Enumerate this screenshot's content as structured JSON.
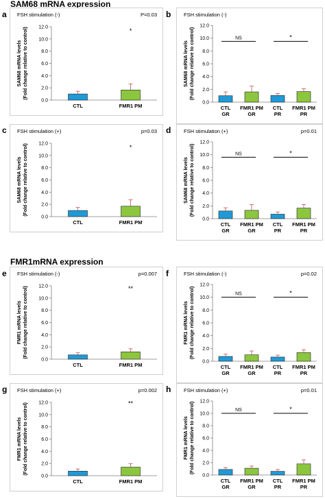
{
  "sections": [
    {
      "title": "SAM68 mRNA expression"
    },
    {
      "title": "FMR1mRNA expression"
    }
  ],
  "colors": {
    "ctl": "#1f9ad6",
    "fmr1pm": "#8cc63f",
    "error": "#c0504d",
    "axis": "#7f7f7f",
    "stroke": "#222222"
  },
  "chart_data": [
    {
      "panel": "a",
      "type": "bar",
      "header": "FSH stimulation (-)",
      "pvalue": "P=0.03",
      "ylabel": [
        "SAM68 mRNA levels",
        "(Fold change relative to control)"
      ],
      "ylim": [
        0,
        12
      ],
      "yticks": [
        "0.0",
        "2.0",
        "4.0",
        "6.0",
        "8.0",
        "10.0",
        "12.0"
      ],
      "categories": [
        [
          "CTL"
        ],
        [
          "FMR1 PM"
        ]
      ],
      "values": [
        1.0,
        1.65
      ],
      "errors": [
        0.45,
        1.0
      ],
      "colors": [
        "ctl",
        "fmr1pm"
      ],
      "marks": [
        {
          "text": "*",
          "index": 1,
          "y": 11.0
        }
      ],
      "brackets": []
    },
    {
      "panel": "b",
      "type": "bar",
      "header": "FSH stimulation (-)",
      "pvalue": "",
      "ylabel": [
        "SAM68 mRNA levels",
        "(Fold change relative to control)"
      ],
      "ylim": [
        0,
        12
      ],
      "yticks": [
        "0.0",
        "2.0",
        "4.0",
        "6.0",
        "8.0",
        "10.0",
        "12.0"
      ],
      "categories": [
        [
          "CTL",
          "GR"
        ],
        [
          "FMR1 PM",
          "GR"
        ],
        [
          "CTL",
          "PR"
        ],
        [
          "FMR1 PM",
          "PR"
        ]
      ],
      "values": [
        1.0,
        1.6,
        1.05,
        1.65
      ],
      "errors": [
        0.6,
        0.9,
        0.3,
        0.45
      ],
      "colors": [
        "ctl",
        "fmr1pm",
        "ctl",
        "fmr1pm"
      ],
      "marks": [],
      "brackets": [
        {
          "label": "NS",
          "from": 0,
          "to": 1,
          "y": 9.5
        },
        {
          "label": "*",
          "from": 2,
          "to": 3,
          "y": 9.5
        }
      ]
    },
    {
      "panel": "c",
      "type": "bar",
      "header": "FSH stimulation (+)",
      "pvalue": "p=0.03",
      "ylabel": [
        "SAM68 mRNA levels",
        "(Fold change relative to control)"
      ],
      "ylim": [
        0,
        12
      ],
      "yticks": [
        "0.0",
        "2.0",
        "4.0",
        "6.0",
        "8.0",
        "10.0",
        "12.0"
      ],
      "categories": [
        [
          "CTL"
        ],
        [
          "FMR1 PM"
        ]
      ],
      "values": [
        1.0,
        1.7
      ],
      "errors": [
        0.5,
        1.05
      ],
      "colors": [
        "ctl",
        "fmr1pm"
      ],
      "marks": [
        {
          "text": "*",
          "index": 1,
          "y": 11.0
        }
      ],
      "brackets": []
    },
    {
      "panel": "d",
      "type": "bar",
      "header": "FSH stimulation (+)",
      "pvalue": "p=0.01",
      "ylabel": [
        "SAM68 mRNA levels",
        "(Fold change relative to control)"
      ],
      "ylim": [
        0,
        12
      ],
      "yticks": [
        "0.0",
        "2.0",
        "4.0",
        "6.0",
        "8.0",
        "10.0",
        "12.0"
      ],
      "categories": [
        [
          "CTL",
          "GR"
        ],
        [
          "FMR1 PM",
          "GR"
        ],
        [
          "CTL",
          "PR"
        ],
        [
          "FMR1 PM",
          "PR"
        ]
      ],
      "values": [
        1.2,
        1.3,
        0.7,
        1.65
      ],
      "errors": [
        0.5,
        0.9,
        0.35,
        0.55
      ],
      "colors": [
        "ctl",
        "fmr1pm",
        "ctl",
        "fmr1pm"
      ],
      "marks": [],
      "brackets": [
        {
          "label": "NS",
          "from": 0,
          "to": 1,
          "y": 9.6
        },
        {
          "label": "*",
          "from": 2,
          "to": 3,
          "y": 9.6
        }
      ]
    },
    {
      "panel": "e",
      "type": "bar",
      "header": "FSH stimulation (-)",
      "pvalue": "p=0.007",
      "ylabel": [
        "FMR1 mRNA levels",
        "(Fold change relative to control)"
      ],
      "ylim": [
        0,
        12
      ],
      "yticks": [
        "0.0",
        "2.0",
        "4.0",
        "6.0",
        "8.0",
        "10.0",
        "12.0"
      ],
      "categories": [
        [
          "CTL"
        ],
        [
          "FMR1 PM"
        ]
      ],
      "values": [
        0.7,
        1.2
      ],
      "errors": [
        0.35,
        0.5
      ],
      "colors": [
        "ctl",
        "fmr1pm"
      ],
      "marks": [
        {
          "text": "**",
          "index": 1,
          "y": 11.2
        }
      ],
      "brackets": []
    },
    {
      "panel": "f",
      "type": "bar",
      "header": "FSH stimulation (-)",
      "pvalue": "p=0.02",
      "ylabel": [
        "FMR1 mRNA levels",
        "(Fold change relative to control)"
      ],
      "ylim": [
        0,
        12
      ],
      "yticks": [
        "0.0",
        "2.0",
        "4.0",
        "6.0",
        "8.0",
        "10.0",
        "12.0"
      ],
      "categories": [
        [
          "CTL",
          "GR"
        ],
        [
          "FMR1 PM",
          "GR"
        ],
        [
          "CTL",
          "PR"
        ],
        [
          "FMR1 PM",
          "PR"
        ]
      ],
      "values": [
        0.75,
        1.0,
        0.65,
        1.35
      ],
      "errors": [
        0.35,
        0.6,
        0.3,
        0.45
      ],
      "colors": [
        "ctl",
        "fmr1pm",
        "ctl",
        "fmr1pm"
      ],
      "marks": [],
      "brackets": [
        {
          "label": "NS",
          "from": 0,
          "to": 1,
          "y": 10.0
        },
        {
          "label": "*",
          "from": 2,
          "to": 3,
          "y": 10.0
        }
      ]
    },
    {
      "panel": "g",
      "type": "bar",
      "header": "FSH stimulation (+)",
      "pvalue": "p=0.002",
      "ylabel": [
        "FMR1 mRNA levels",
        "(Fold change relative to control)"
      ],
      "ylim": [
        0,
        12
      ],
      "yticks": [
        "0.0",
        "2.0",
        "4.0",
        "6.0",
        "8.0",
        "10.0",
        "12.0"
      ],
      "categories": [
        [
          "CTL"
        ],
        [
          "FMR1 PM"
        ]
      ],
      "values": [
        0.75,
        1.4
      ],
      "errors": [
        0.35,
        0.55
      ],
      "colors": [
        "ctl",
        "fmr1pm"
      ],
      "marks": [
        {
          "text": "**",
          "index": 1,
          "y": 11.5
        }
      ],
      "brackets": []
    },
    {
      "panel": "h",
      "type": "bar",
      "header": "FSH stimulation (+)",
      "pvalue": "p=0.01",
      "ylabel": [
        "FMR1 mRNA levels",
        "(Fold change relative to control)"
      ],
      "ylim": [
        0,
        12
      ],
      "yticks": [
        "0.0",
        "2.0",
        "4.0",
        "6.0",
        "8.0",
        "10.0",
        "12.0"
      ],
      "categories": [
        [
          "CTL",
          "GR"
        ],
        [
          "FMR1 PM",
          "GR"
        ],
        [
          "CTL",
          "PR"
        ],
        [
          "FMR1 PM",
          "PR"
        ]
      ],
      "values": [
        0.9,
        1.1,
        0.6,
        1.8
      ],
      "errors": [
        0.3,
        0.35,
        0.3,
        0.65
      ],
      "colors": [
        "ctl",
        "fmr1pm",
        "ctl",
        "fmr1pm"
      ],
      "marks": [],
      "brackets": [
        {
          "label": "NS",
          "from": 0,
          "to": 1,
          "y": 10.0
        },
        {
          "label": "*",
          "from": 2,
          "to": 3,
          "y": 10.0
        }
      ]
    }
  ]
}
